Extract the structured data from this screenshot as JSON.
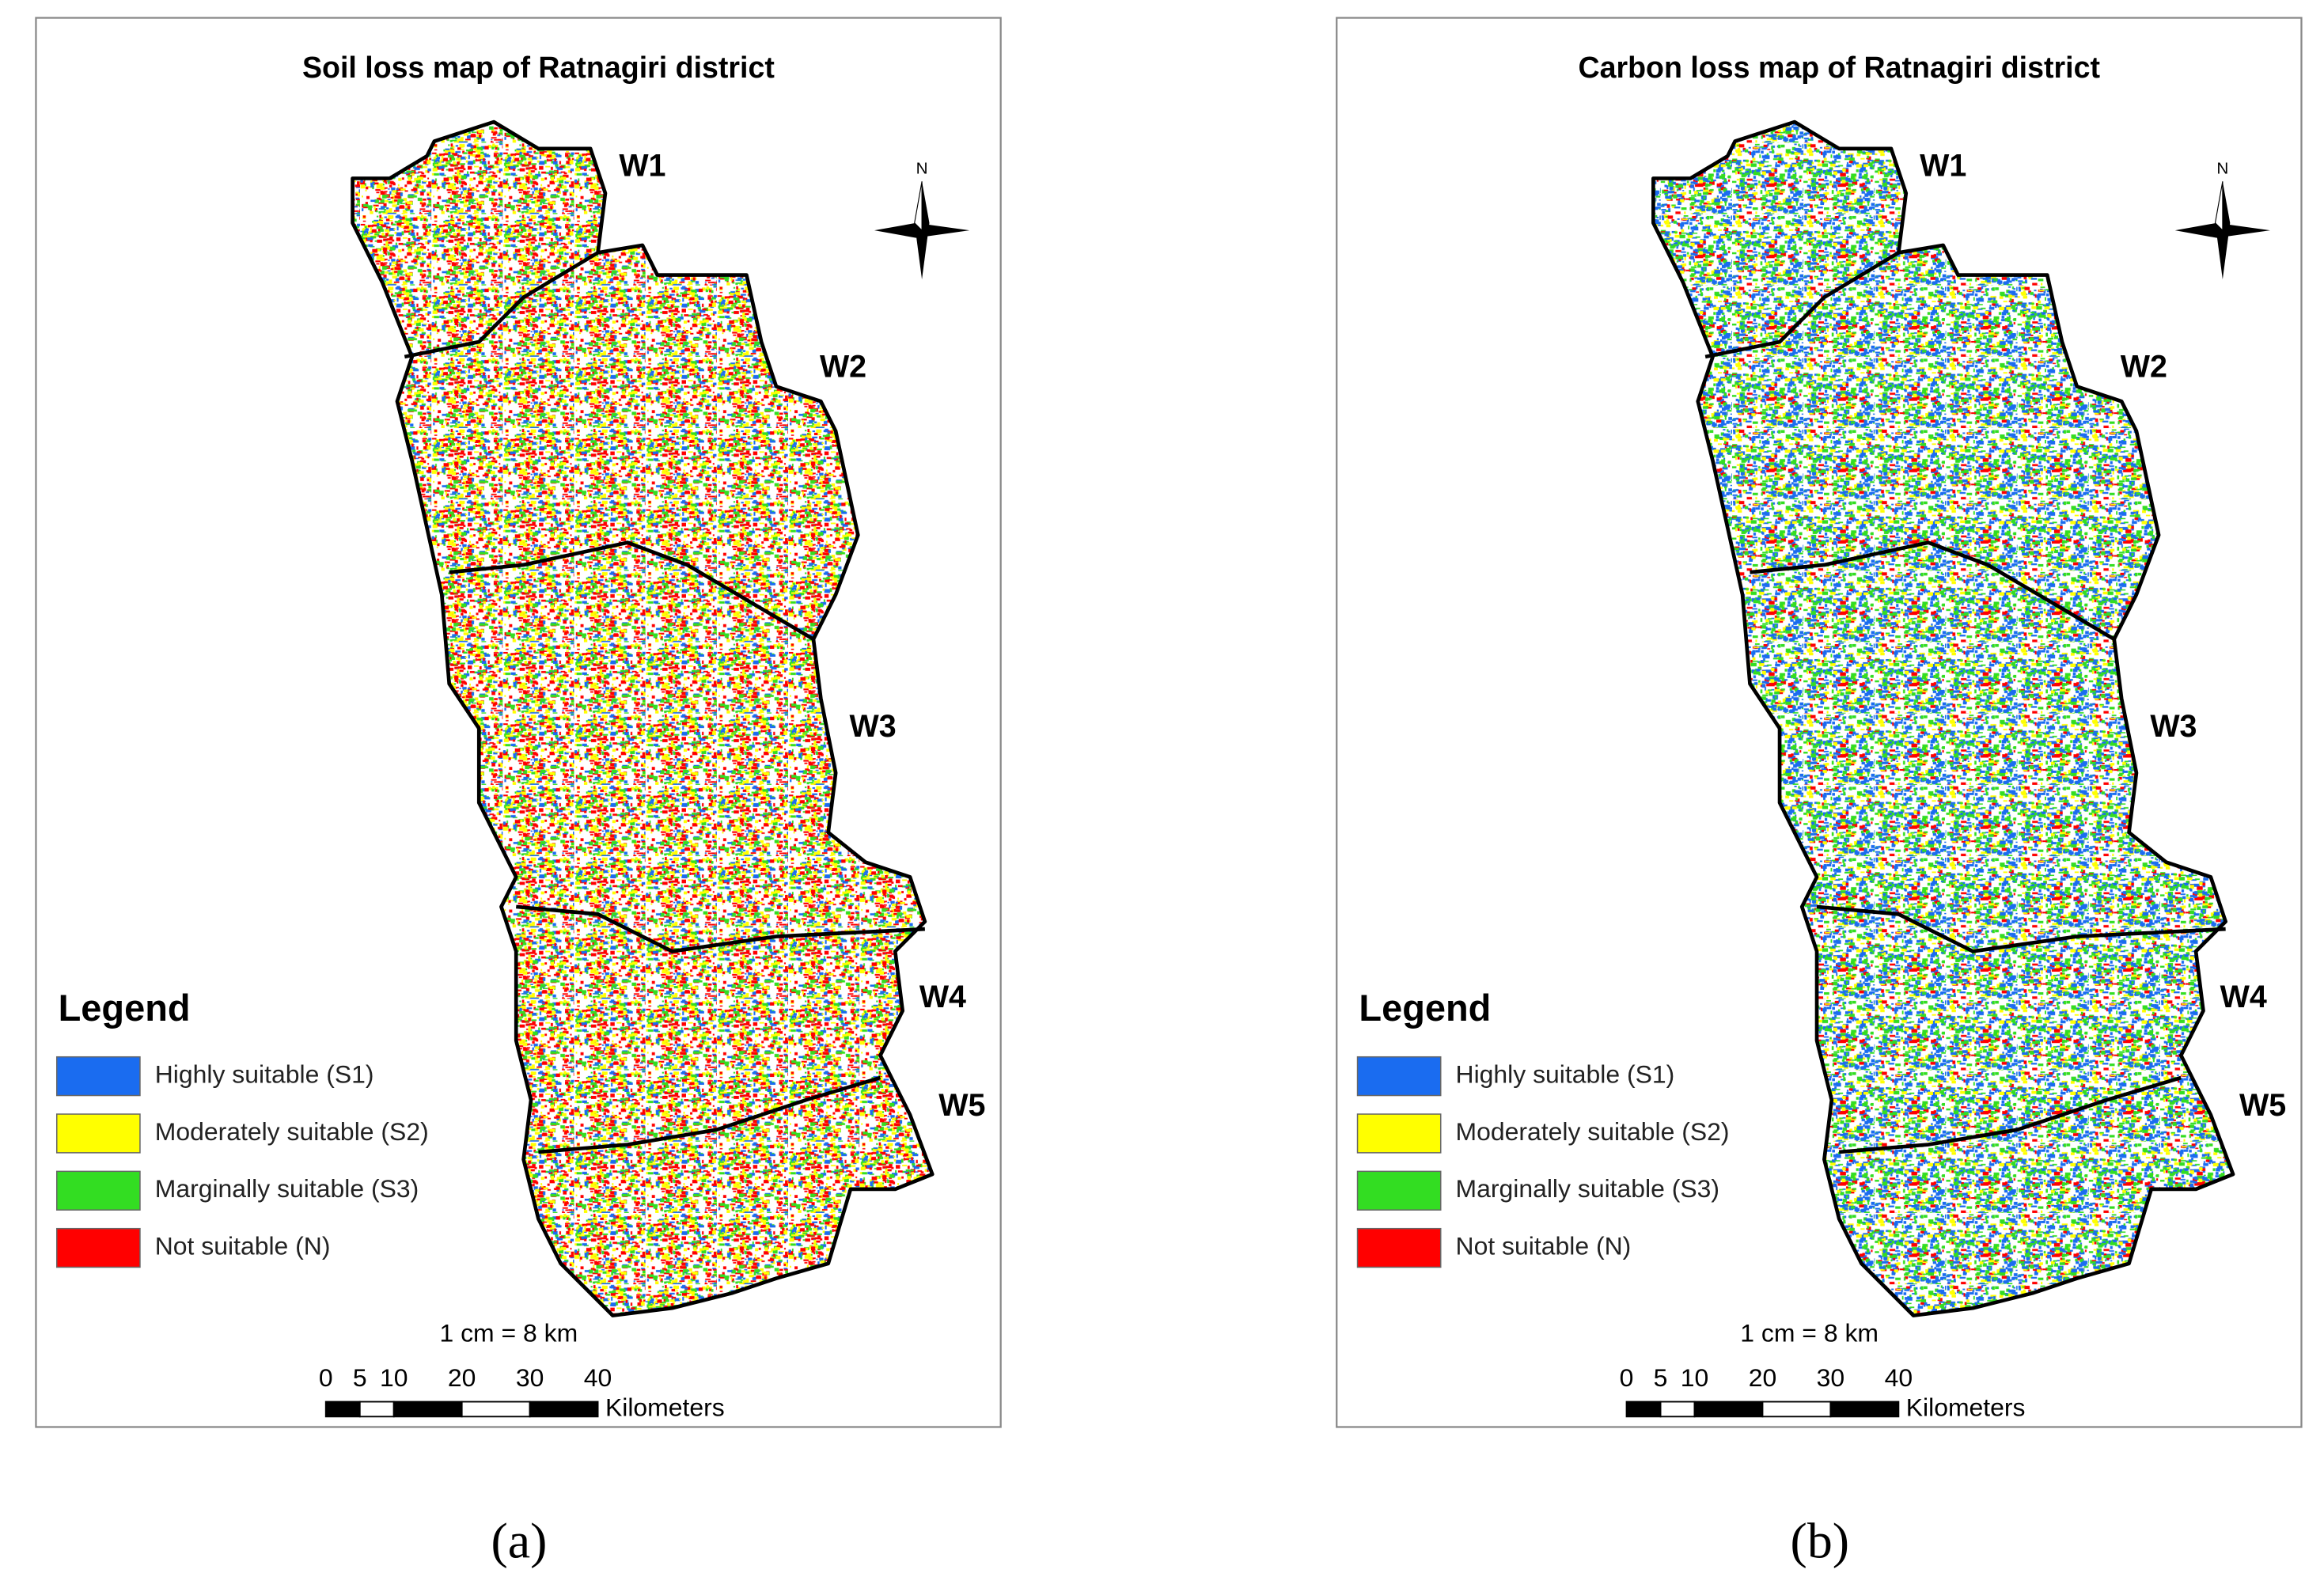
{
  "panels": [
    {
      "title": "Soil loss map of Ratnagiri district",
      "watershed_labels": [
        "W1",
        "W2",
        "W3",
        "W4",
        "W5"
      ],
      "north": "N",
      "legend": {
        "title": "Legend",
        "items": [
          {
            "label": "Highly suitable (S1)",
            "color": "#1a6cf0"
          },
          {
            "label": "Moderately suitable (S2)",
            "color": "#ffff00"
          },
          {
            "label": "Marginally suitable (S3)",
            "color": "#33dd22"
          },
          {
            "label": "Not suitable (N)",
            "color": "#ff0000"
          }
        ]
      },
      "scale_text": "1 cm = 8 km",
      "scale_ticks": [
        0,
        5,
        10,
        20,
        30,
        40
      ],
      "scale_unit": "Kilometers",
      "caption": "(a)"
    },
    {
      "title": "Carbon loss map of Ratnagiri district",
      "watershed_labels": [
        "W1",
        "W2",
        "W3",
        "W4",
        "W5"
      ],
      "north": "N",
      "legend": {
        "title": "Legend",
        "items": [
          {
            "label": "Highly suitable (S1)",
            "color": "#1a6cf0"
          },
          {
            "label": "Moderately suitable (S2)",
            "color": "#ffff00"
          },
          {
            "label": "Marginally suitable (S3)",
            "color": "#33dd22"
          },
          {
            "label": "Not suitable (N)",
            "color": "#ff0000"
          }
        ]
      },
      "scale_text": "1 cm = 8 km",
      "scale_ticks": [
        0,
        5,
        10,
        20,
        30,
        40
      ],
      "scale_unit": "Kilometers",
      "caption": "(b)"
    }
  ]
}
